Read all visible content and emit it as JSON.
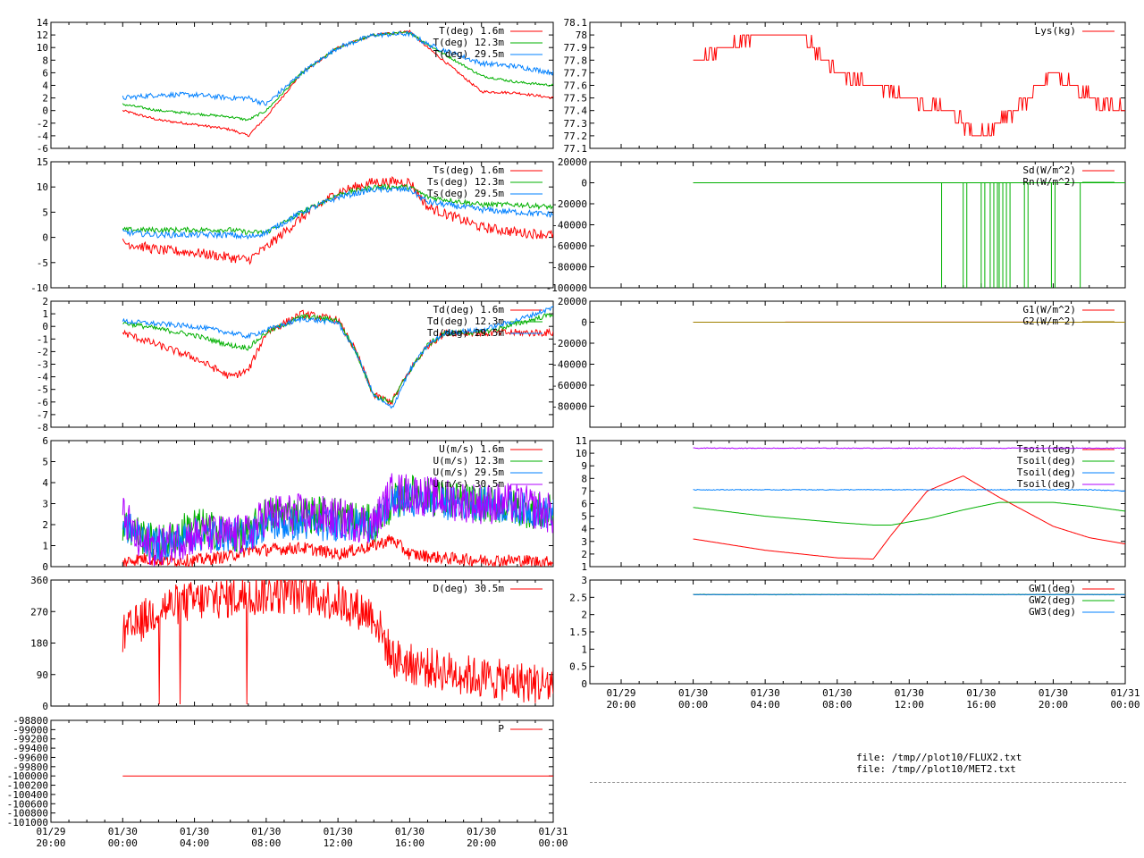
{
  "colors": {
    "red": "#ff0000",
    "green": "#00b000",
    "blue": "#0080ff",
    "purple": "#b000ff",
    "olive": "#a08000",
    "axis": "#000000",
    "grid": "#aaaaaa"
  },
  "time_axis": {
    "ticks": [
      {
        "date": "01/29",
        "time": "20:00"
      },
      {
        "date": "01/30",
        "time": "00:00"
      },
      {
        "date": "01/30",
        "time": "04:00"
      },
      {
        "date": "01/30",
        "time": "08:00"
      },
      {
        "date": "01/30",
        "time": "12:00"
      },
      {
        "date": "01/30",
        "time": "16:00"
      },
      {
        "date": "01/30",
        "time": "20:00"
      },
      {
        "date": "01/31",
        "time": "00:00"
      }
    ]
  },
  "files": [
    "file: /tmp//plot10/FLUX2.txt",
    "file: /tmp//plot10/MET2.txt"
  ],
  "chart_data": [
    {
      "id": "temp",
      "type": "line",
      "ylim": [
        -6,
        14
      ],
      "yticks": [
        -6,
        -4,
        -2,
        0,
        2,
        4,
        6,
        8,
        10,
        12,
        14
      ],
      "ytick_labels": [
        "-6",
        "-4",
        "-2",
        "0",
        "2",
        "4",
        "6",
        "8",
        "10",
        "12",
        "14"
      ],
      "x": [
        "01/30 00:00",
        "01/30 02:00",
        "01/30 04:00",
        "01/30 06:00",
        "01/30 07:00",
        "01/30 08:00",
        "01/30 10:00",
        "01/30 12:00",
        "01/30 14:00",
        "01/30 16:00",
        "01/30 17:00",
        "01/30 20:00",
        "01/30 22:00",
        "01/31 00:00"
      ],
      "series": [
        {
          "name": "T(deg)  1.6m",
          "color": "red",
          "noise": 0.2,
          "values": [
            0,
            -1.5,
            -2.2,
            -3,
            -4,
            -1,
            6,
            10,
            12,
            12.6,
            10,
            3,
            2.8,
            2
          ]
        },
        {
          "name": "T(deg) 12.3m",
          "color": "green",
          "noise": 0.2,
          "values": [
            1,
            0,
            -0.5,
            -1,
            -1.5,
            0,
            6,
            10,
            12,
            12.4,
            10.5,
            5.5,
            4.5,
            4
          ]
        },
        {
          "name": "T(deg) 29.5m",
          "color": "blue",
          "noise": 0.4,
          "values": [
            2,
            2.5,
            2.5,
            2,
            2,
            1,
            6,
            10,
            12,
            12.2,
            10.5,
            7.5,
            7,
            6
          ]
        }
      ]
    },
    {
      "id": "tsurf",
      "type": "line",
      "ylim": [
        -10,
        15
      ],
      "yticks": [
        -10,
        -5,
        0,
        5,
        10,
        15
      ],
      "ytick_labels": [
        "-10",
        "-5",
        "0",
        "5",
        "10",
        "15"
      ],
      "x": [
        "01/30 00:00",
        "01/30 02:00",
        "01/30 04:00",
        "01/30 06:00",
        "01/30 07:00",
        "01/30 08:00",
        "01/30 10:00",
        "01/30 12:00",
        "01/30 14:00",
        "01/30 16:00",
        "01/30 17:00",
        "01/30 20:00",
        "01/30 22:00",
        "01/31 00:00"
      ],
      "series": [
        {
          "name": "Ts(deg)  1.6m",
          "color": "red",
          "noise": 1.0,
          "values": [
            -1,
            -2.5,
            -3,
            -4,
            -4.5,
            -2,
            4,
            9,
            11,
            11,
            6,
            2,
            1,
            0.5
          ]
        },
        {
          "name": "Ts(deg) 12.3m",
          "color": "green",
          "noise": 0.5,
          "values": [
            1.5,
            1.5,
            1.5,
            1.5,
            1,
            1,
            5,
            8.5,
            10,
            10,
            8,
            6.5,
            6.5,
            6
          ]
        },
        {
          "name": "Ts(deg) 29.5m",
          "color": "blue",
          "noise": 0.6,
          "values": [
            1,
            0.5,
            0.5,
            0.5,
            0,
            1,
            5,
            8,
            9.5,
            9.5,
            7,
            5.5,
            5,
            4.5
          ]
        }
      ]
    },
    {
      "id": "dewpoint",
      "type": "line",
      "ylim": [
        -8,
        2
      ],
      "yticks": [
        -8,
        -7,
        -6,
        -5,
        -4,
        -3,
        -2,
        -1,
        0,
        1,
        2
      ],
      "ytick_labels": [
        "-8",
        "-7",
        "-6",
        "-5",
        "-4",
        "-3",
        "-2",
        "-1",
        "0",
        "1",
        "2"
      ],
      "x": [
        "01/30 00:00",
        "01/30 02:00",
        "01/30 04:00",
        "01/30 06:00",
        "01/30 07:00",
        "01/30 08:00",
        "01/30 10:00",
        "01/30 12:00",
        "01/30 13:00",
        "01/30 14:00",
        "01/30 15:00",
        "01/30 16:00",
        "01/30 17:00",
        "01/30 18:00",
        "01/30 20:00",
        "01/30 22:00",
        "01/31 00:00"
      ],
      "series": [
        {
          "name": "Td(deg)  1.6m",
          "color": "red",
          "noise": 0.3,
          "values": [
            -0.5,
            -1.5,
            -2.5,
            -4,
            -3.5,
            -0.5,
            1,
            0.5,
            -2,
            -5.5,
            -6,
            -3.5,
            -1.5,
            -0.5,
            -0.5,
            -0.5,
            -0.5
          ]
        },
        {
          "name": "Td(deg) 12.3m",
          "color": "green",
          "noise": 0.2,
          "values": [
            0.3,
            -0.2,
            -0.7,
            -1.5,
            -1.7,
            -0.5,
            0.8,
            0.5,
            -2,
            -5.5,
            -6,
            -3.5,
            -1.5,
            -0.5,
            -0.5,
            0.2,
            1
          ]
        },
        {
          "name": "Td(deg) 29.5m",
          "color": "blue",
          "noise": 0.2,
          "values": [
            0.4,
            0.2,
            0,
            -0.5,
            -0.8,
            -0.3,
            0.6,
            0.3,
            -2,
            -5.5,
            -6.5,
            -3.5,
            -1.5,
            -0.5,
            -0.3,
            0.5,
            1.5
          ]
        }
      ]
    },
    {
      "id": "wind",
      "type": "line",
      "ylim": [
        0,
        6
      ],
      "yticks": [
        0,
        1,
        2,
        3,
        4,
        5,
        6
      ],
      "ytick_labels": [
        "0",
        "1",
        "2",
        "3",
        "4",
        "5",
        "6"
      ],
      "x": [
        "01/30 00:00",
        "01/30 01:00",
        "01/30 02:00",
        "01/30 04:00",
        "01/30 06:00",
        "01/30 07:00",
        "01/30 08:00",
        "01/30 10:00",
        "01/30 12:00",
        "01/30 14:00",
        "01/30 15:00",
        "01/30 16:00",
        "01/30 18:00",
        "01/30 20:00",
        "01/30 22:00",
        "01/31 00:00"
      ],
      "series": [
        {
          "name": "U(m/s)  1.6m",
          "color": "red",
          "noise": 0.3,
          "values": [
            0.2,
            0.4,
            0.3,
            0.3,
            0.5,
            0.8,
            0.8,
            0.9,
            0.6,
            1.0,
            1.3,
            0.6,
            0.4,
            0.3,
            0.3,
            0.2
          ]
        },
        {
          "name": "U(m/s) 12.3m",
          "color": "green",
          "noise": 0.9,
          "values": [
            2,
            1.5,
            1,
            2,
            1.5,
            1.5,
            2.5,
            2.5,
            2.5,
            2,
            3,
            3.5,
            3.2,
            3,
            2.8,
            2.5
          ]
        },
        {
          "name": "U(m/s) 29.5m",
          "color": "blue",
          "noise": 0.8,
          "values": [
            2,
            1.5,
            1,
            1.5,
            1.5,
            1.5,
            2,
            2,
            2,
            2,
            3,
            3.2,
            3,
            3,
            2.8,
            2.5
          ]
        },
        {
          "name": "U(m/s) 30.5m",
          "color": "purple",
          "noise": 1.0,
          "values": [
            2.5,
            1,
            1,
            1.5,
            1.5,
            1.5,
            2.5,
            2.5,
            2.3,
            2,
            3.5,
            3.5,
            3.2,
            3,
            3,
            2.5
          ]
        }
      ]
    },
    {
      "id": "direction",
      "type": "line",
      "ylim": [
        0,
        360
      ],
      "yticks": [
        0,
        90,
        180,
        270,
        360
      ],
      "ytick_labels": [
        "0",
        "90",
        "180",
        "270",
        "360"
      ],
      "x": [
        "01/30 00:00",
        "01/30 01:00",
        "01/30 02:00",
        "01/30 04:00",
        "01/30 06:00",
        "01/30 08:00",
        "01/30 10:00",
        "01/30 12:00",
        "01/30 14:00",
        "01/30 15:00",
        "01/30 16:00",
        "01/30 18:00",
        "01/30 20:00",
        "01/30 22:00",
        "01/31 00:00"
      ],
      "series": [
        {
          "name": "D(deg)  30.5m",
          "color": "red",
          "noise": 60,
          "values": [
            200,
            240,
            280,
            300,
            310,
            320,
            320,
            300,
            260,
            140,
            120,
            100,
            80,
            70,
            60
          ]
        }
      ]
    },
    {
      "id": "pressure",
      "type": "line",
      "ylim": [
        -101000,
        -98800
      ],
      "yticks": [
        -101000,
        -100800,
        -100600,
        -100400,
        -100200,
        -100000,
        -99800,
        -99600,
        -99400,
        -99200,
        -99000,
        -98800
      ],
      "ytick_labels": [
        "-101000",
        "-100800",
        "-100600",
        "-100400",
        "-100200",
        "-100000",
        "-99800",
        "-99600",
        "-99400",
        "-99200",
        "-99000",
        "-98800"
      ],
      "x": [
        "01/30 00:00",
        "01/31 00:00"
      ],
      "series": [
        {
          "name": "P",
          "color": "red",
          "noise": 0,
          "values": [
            -100000,
            -100000
          ]
        }
      ]
    },
    {
      "id": "lys",
      "type": "line",
      "ylim": [
        77.1,
        78.1
      ],
      "yticks": [
        77.1,
        77.2,
        77.3,
        77.4,
        77.5,
        77.6,
        77.7,
        77.8,
        77.9,
        78,
        78.1
      ],
      "ytick_labels": [
        "77.1",
        "77.2",
        "77.3",
        "77.4",
        "77.5",
        "77.6",
        "77.7",
        "77.8",
        "77.9",
        "78",
        "78.1"
      ],
      "x": [
        "01/30 00:00",
        "01/30 02:00",
        "01/30 04:00",
        "01/30 06:00",
        "01/30 08:00",
        "01/30 10:00",
        "01/30 12:00",
        "01/30 14:00",
        "01/30 16:00",
        "01/30 18:00",
        "01/30 20:00",
        "01/30 22:00",
        "01/31 00:00"
      ],
      "series": [
        {
          "name": "Lys(kg)",
          "color": "red",
          "noise": 0.05,
          "values": [
            77.8,
            77.9,
            78.0,
            78.0,
            77.7,
            77.6,
            77.5,
            77.4,
            77.2,
            77.4,
            77.7,
            77.5,
            77.4
          ]
        }
      ]
    },
    {
      "id": "radiation",
      "type": "line",
      "ylim": [
        -100000,
        20000
      ],
      "yticks": [
        -100000,
        -80000,
        -60000,
        -40000,
        -20000,
        0,
        20000
      ],
      "ytick_labels": [
        "-100000",
        "-80000",
        "-60000",
        "-40000",
        "-20000",
        "0",
        "20000"
      ],
      "x": [
        "01/30 00:00",
        "01/31 00:00"
      ],
      "series": [
        {
          "name": "Sd(W/m^2)",
          "color": "red",
          "noise": 0,
          "values": [
            0,
            0
          ]
        },
        {
          "name": "Rn(W/m^2)",
          "color": "green",
          "noise": 0,
          "values": [
            0,
            0
          ]
        }
      ],
      "spikes": {
        "series": "Rn(W/m^2)",
        "value": -100000,
        "x_hours": [
          13.8,
          15.0,
          15.2,
          16.0,
          16.2,
          16.5,
          16.7,
          16.9,
          17.0,
          17.2,
          17.4,
          17.6,
          18.4,
          18.6,
          19.9,
          20.1,
          21.5
        ]
      }
    },
    {
      "id": "ground",
      "type": "line",
      "ylim": [
        -100000,
        20000
      ],
      "yticks": [
        -80000,
        -60000,
        -40000,
        -20000,
        0,
        20000
      ],
      "ytick_labels": [
        "-80000",
        "-60000",
        "-40000",
        "-20000",
        "0",
        "20000"
      ],
      "x": [
        "01/30 00:00",
        "01/30 12:00",
        "01/31 00:00"
      ],
      "series": [
        {
          "name": "G1(W/m^2)",
          "color": "red",
          "noise": 0,
          "values": [
            0,
            100,
            0
          ]
        },
        {
          "name": "G2(W/m^2)",
          "color": "olive",
          "noise": 0,
          "values": [
            0,
            0,
            0
          ]
        }
      ]
    },
    {
      "id": "tsoil",
      "type": "line",
      "ylim": [
        1,
        11
      ],
      "yticks": [
        1,
        2,
        3,
        4,
        5,
        6,
        7,
        8,
        9,
        10,
        11
      ],
      "ytick_labels": [
        "1",
        "2",
        "3",
        "4",
        "5",
        "6",
        "7",
        "8",
        "9",
        "10",
        "11"
      ],
      "x": [
        "01/30 00:00",
        "01/30 04:00",
        "01/30 08:00",
        "01/30 10:00",
        "01/30 11:00",
        "01/30 13:00",
        "01/30 15:00",
        "01/30 17:00",
        "01/30 20:00",
        "01/30 22:00",
        "01/31 00:00"
      ],
      "series": [
        {
          "name": "Tsoil(deg)",
          "color": "red",
          "noise": 0,
          "values": [
            3.2,
            2.3,
            1.7,
            1.6,
            3.5,
            7.0,
            8.2,
            6.5,
            4.2,
            3.3,
            2.8
          ]
        },
        {
          "name": "Tsoil(deg)",
          "color": "green",
          "noise": 0,
          "values": [
            5.7,
            5.0,
            4.5,
            4.3,
            4.3,
            4.8,
            5.5,
            6.1,
            6.1,
            5.8,
            5.4
          ]
        },
        {
          "name": "Tsoil(deg)",
          "color": "blue",
          "noise": 0.03,
          "values": [
            7.1,
            7.1,
            7.1,
            7.1,
            7.1,
            7.1,
            7.1,
            7.1,
            7.1,
            7.1,
            7.0
          ]
        },
        {
          "name": "Tsoil(deg)",
          "color": "purple",
          "noise": 0.03,
          "values": [
            10.4,
            10.4,
            10.4,
            10.4,
            10.4,
            10.4,
            10.4,
            10.4,
            10.4,
            10.4,
            10.4
          ]
        }
      ]
    },
    {
      "id": "gw",
      "type": "line",
      "ylim": [
        0,
        3
      ],
      "yticks": [
        0,
        0.5,
        1,
        1.5,
        2,
        2.5,
        3
      ],
      "ytick_labels": [
        "0",
        "0.5",
        "1",
        "1.5",
        "2",
        "2.5",
        "3"
      ],
      "x": [
        "01/30 00:00",
        "01/31 00:00"
      ],
      "series": [
        {
          "name": "GW1(deg)",
          "color": "red",
          "noise": 0,
          "values": [
            2.58,
            2.58
          ]
        },
        {
          "name": "GW2(deg)",
          "color": "green",
          "noise": 0.01,
          "values": [
            2.58,
            2.58
          ]
        },
        {
          "name": "GW3(deg)",
          "color": "blue",
          "noise": 0,
          "values": [
            2.58,
            2.58
          ]
        }
      ]
    }
  ]
}
